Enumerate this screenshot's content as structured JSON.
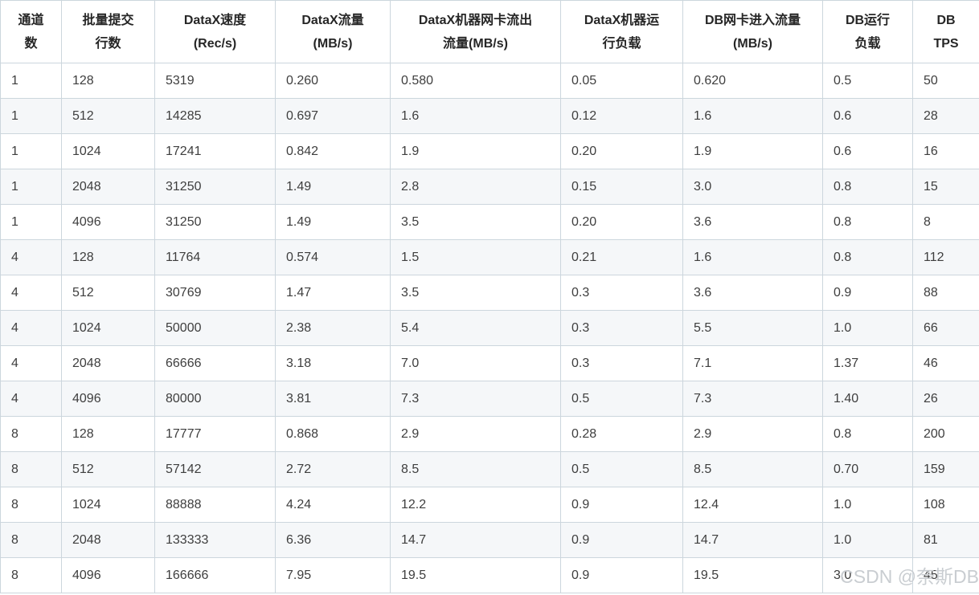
{
  "table": {
    "columns": [
      {
        "line1": "通道",
        "line2": "数"
      },
      {
        "line1": "批量提交",
        "line2": "行数"
      },
      {
        "line1": "DataX速度",
        "line2": "(Rec/s)"
      },
      {
        "line1": "DataX流量",
        "line2": "(MB/s)"
      },
      {
        "line1": "DataX机器网卡流出",
        "line2": "流量(MB/s)"
      },
      {
        "line1": "DataX机器运",
        "line2": "行负载"
      },
      {
        "line1": "DB网卡进入流量",
        "line2": "(MB/s)"
      },
      {
        "line1": "DB运行",
        "line2": "负载"
      },
      {
        "line1": "DB",
        "line2": "TPS"
      }
    ],
    "rows": [
      [
        "1",
        "128",
        "5319",
        "0.260",
        "0.580",
        "0.05",
        "0.620",
        "0.5",
        "50"
      ],
      [
        "1",
        "512",
        "14285",
        "0.697",
        "1.6",
        "0.12",
        "1.6",
        "0.6",
        "28"
      ],
      [
        "1",
        "1024",
        "17241",
        "0.842",
        "1.9",
        "0.20",
        "1.9",
        "0.6",
        "16"
      ],
      [
        "1",
        "2048",
        "31250",
        "1.49",
        "2.8",
        "0.15",
        "3.0",
        "0.8",
        "15"
      ],
      [
        "1",
        "4096",
        "31250",
        "1.49",
        "3.5",
        "0.20",
        "3.6",
        "0.8",
        "8"
      ],
      [
        "4",
        "128",
        "11764",
        "0.574",
        "1.5",
        "0.21",
        "1.6",
        "0.8",
        "112"
      ],
      [
        "4",
        "512",
        "30769",
        "1.47",
        "3.5",
        "0.3",
        "3.6",
        "0.9",
        "88"
      ],
      [
        "4",
        "1024",
        "50000",
        "2.38",
        "5.4",
        "0.3",
        "5.5",
        "1.0",
        "66"
      ],
      [
        "4",
        "2048",
        "66666",
        "3.18",
        "7.0",
        "0.3",
        "7.1",
        "1.37",
        "46"
      ],
      [
        "4",
        "4096",
        "80000",
        "3.81",
        "7.3",
        "0.5",
        "7.3",
        "1.40",
        "26"
      ],
      [
        "8",
        "128",
        "17777",
        "0.868",
        "2.9",
        "0.28",
        "2.9",
        "0.8",
        "200"
      ],
      [
        "8",
        "512",
        "57142",
        "2.72",
        "8.5",
        "0.5",
        "8.5",
        "0.70",
        "159"
      ],
      [
        "8",
        "1024",
        "88888",
        "4.24",
        "12.2",
        "0.9",
        "12.4",
        "1.0",
        "108"
      ],
      [
        "8",
        "2048",
        "133333",
        "6.36",
        "14.7",
        "0.9",
        "14.7",
        "1.0",
        "81"
      ],
      [
        "8",
        "4096",
        "166666",
        "7.95",
        "19.5",
        "0.9",
        "19.5",
        "3.0",
        "45"
      ]
    ]
  },
  "watermark": {
    "text": "CSDN @奈斯DB"
  },
  "colors": {
    "border": "#ccd6dd",
    "stripe": "#f5f7f9",
    "header_text": "#262626",
    "body_text": "#3e3e3e",
    "watermark_text": "#c9cdd1"
  }
}
